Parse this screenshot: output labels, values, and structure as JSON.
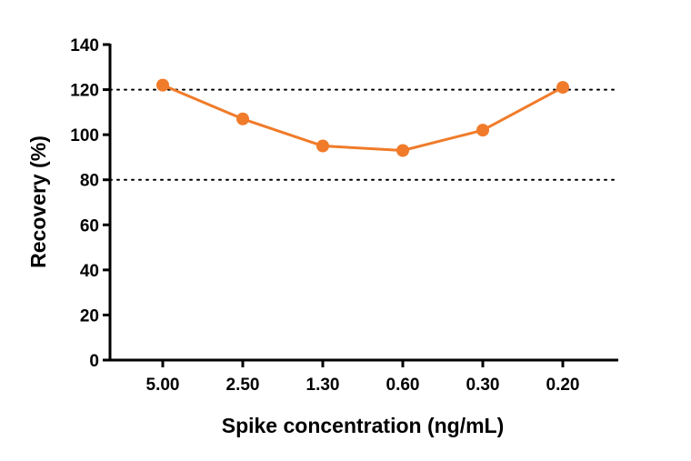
{
  "chart_data": {
    "type": "line",
    "title": "",
    "xlabel": "Spike concentration (ng/mL)",
    "ylabel": "Recovery (%)",
    "categories": [
      "5.00",
      "2.50",
      "1.30",
      "0.60",
      "0.30",
      "0.20"
    ],
    "series": [
      {
        "values": [
          122,
          107,
          95,
          93,
          102,
          121
        ],
        "color": "#F07B2A"
      }
    ],
    "ylim": [
      0,
      140
    ],
    "yticks": [
      0,
      20,
      40,
      60,
      80,
      100,
      120,
      140
    ],
    "reference_lines": [
      120,
      80
    ],
    "grid": false,
    "legend": "none"
  }
}
